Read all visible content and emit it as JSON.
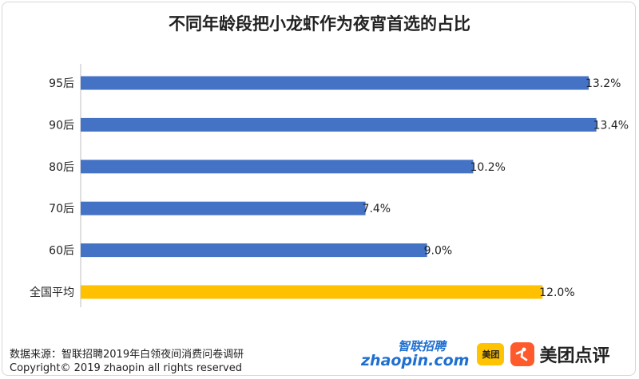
{
  "chart_data": {
    "type": "bar",
    "orientation": "horizontal",
    "title": "不同年龄段把小龙虾作为夜宵首选的占比",
    "categories": [
      "95后",
      "90后",
      "80后",
      "70后",
      "60后",
      "全国平均"
    ],
    "values": [
      13.2,
      13.4,
      10.2,
      7.4,
      9.0,
      12.0
    ],
    "value_labels": [
      "13.2%",
      "13.4%",
      "10.2%",
      "7.4%",
      "9.0%",
      "12.0%"
    ],
    "bar_colors": [
      "#4472c4",
      "#4472c4",
      "#4472c4",
      "#4472c4",
      "#4472c4",
      "#ffc000"
    ],
    "xlim": [
      0,
      14
    ],
    "grid": false
  },
  "footer": {
    "source": "数据来源：智联招聘2019年白领夜间消费问卷调研",
    "copyright": "Copyright© 2019 zhaopin all rights reserved"
  },
  "logos": {
    "zhaopin_cn": "智联招聘",
    "zhaopin_en": "zhaopin.com",
    "meituan": "美团",
    "dianping": "美团点评"
  }
}
